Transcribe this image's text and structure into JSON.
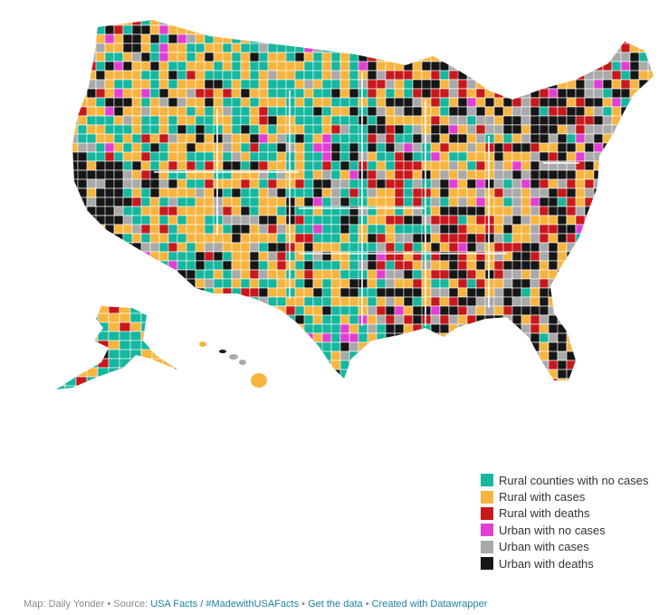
{
  "map": {
    "region": "United States counties (contiguous US, Alaska, Hawaii)",
    "categories": [
      {
        "key": "rural_no_cases",
        "label": "Rural counties with no cases",
        "color": "#15b79e"
      },
      {
        "key": "rural_cases",
        "label": "Rural with cases",
        "color": "#f7b540"
      },
      {
        "key": "rural_deaths",
        "label": "Rural with deaths",
        "color": "#c8181c"
      },
      {
        "key": "urban_no_cases",
        "label": "Urban with no cases",
        "color": "#e23fd2"
      },
      {
        "key": "urban_cases",
        "label": "Urban with cases",
        "color": "#a9a9a9"
      },
      {
        "key": "urban_deaths",
        "label": "Urban with deaths",
        "color": "#161616"
      }
    ]
  },
  "footer": {
    "map_credit": "Map: Daily Yonder",
    "source_prefix": "Source:",
    "source_link": "USA Facts / #MadewithUSAFacts",
    "get_data": "Get the data",
    "created_with": "Created with Datawrapper",
    "separator": "•"
  }
}
